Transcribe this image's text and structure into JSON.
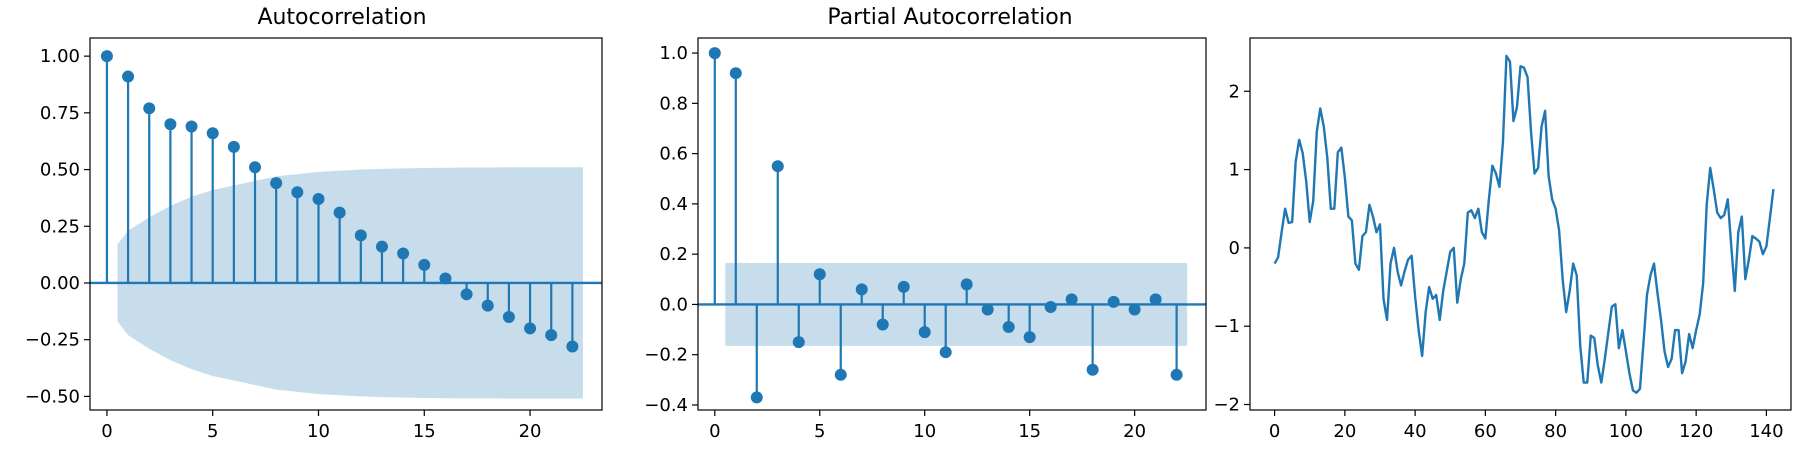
{
  "colors": {
    "accent": "#1f77b4",
    "band": "#1f77b4"
  },
  "chart_data": [
    {
      "type": "stem",
      "title": "Autocorrelation",
      "x": [
        0,
        1,
        2,
        3,
        4,
        5,
        6,
        7,
        8,
        9,
        10,
        11,
        12,
        13,
        14,
        15,
        16,
        17,
        18,
        19,
        20,
        21,
        22
      ],
      "values": [
        1.0,
        0.91,
        0.77,
        0.7,
        0.69,
        0.66,
        0.6,
        0.51,
        0.44,
        0.4,
        0.37,
        0.31,
        0.21,
        0.16,
        0.13,
        0.08,
        0.02,
        -0.05,
        -0.1,
        -0.15,
        -0.2,
        -0.23,
        -0.28
      ],
      "confidence_band": {
        "x": [
          0.5,
          1,
          2,
          3,
          4,
          5,
          6,
          7,
          8,
          9,
          10,
          11,
          12,
          13,
          14,
          15,
          16,
          17,
          18,
          19,
          20,
          21,
          22,
          22.5
        ],
        "upper": [
          0.17,
          0.23,
          0.29,
          0.34,
          0.38,
          0.41,
          0.43,
          0.45,
          0.47,
          0.48,
          0.49,
          0.495,
          0.5,
          0.503,
          0.505,
          0.507,
          0.508,
          0.509,
          0.509,
          0.51,
          0.51,
          0.51,
          0.51,
          0.51
        ]
      },
      "xlim": [
        -0.8,
        23.4
      ],
      "ylim": [
        -0.56,
        1.08
      ],
      "xticks": [
        0,
        5,
        10,
        15,
        20
      ],
      "yticks": [
        -0.5,
        -0.25,
        0.0,
        0.25,
        0.5,
        0.75,
        1.0
      ],
      "ytick_labels": [
        "−0.50",
        "−0.25",
        "0.00",
        "0.25",
        "0.50",
        "0.75",
        "1.00"
      ],
      "grid": false
    },
    {
      "type": "stem",
      "title": "Partial Autocorrelation",
      "x": [
        0,
        1,
        2,
        3,
        4,
        5,
        6,
        7,
        8,
        9,
        10,
        11,
        12,
        13,
        14,
        15,
        16,
        17,
        18,
        19,
        20,
        21,
        22
      ],
      "values": [
        1.0,
        0.92,
        -0.37,
        0.55,
        -0.15,
        0.12,
        -0.28,
        0.06,
        -0.08,
        0.07,
        -0.11,
        -0.19,
        0.08,
        -0.02,
        -0.09,
        -0.13,
        -0.01,
        0.02,
        -0.26,
        0.01,
        -0.02,
        0.02,
        -0.28
      ],
      "confidence_band": {
        "x": [
          0.5,
          22.5
        ],
        "upper": [
          0.165,
          0.165
        ]
      },
      "xlim": [
        -0.8,
        23.4
      ],
      "ylim": [
        -0.42,
        1.06
      ],
      "xticks": [
        0,
        5,
        10,
        15,
        20
      ],
      "yticks": [
        -0.4,
        -0.2,
        0.0,
        0.2,
        0.4,
        0.6,
        0.8,
        1.0
      ],
      "ytick_labels": [
        "−0.4",
        "−0.2",
        "0.0",
        "0.2",
        "0.4",
        "0.6",
        "0.8",
        "1.0"
      ],
      "grid": false
    },
    {
      "type": "line",
      "title": "",
      "x_start": 0,
      "values": [
        -0.2,
        -0.12,
        0.2,
        0.5,
        0.32,
        0.33,
        1.1,
        1.38,
        1.21,
        0.85,
        0.33,
        0.6,
        1.48,
        1.78,
        1.55,
        1.15,
        0.5,
        0.5,
        1.22,
        1.28,
        0.9,
        0.4,
        0.35,
        -0.2,
        -0.28,
        0.15,
        0.2,
        0.55,
        0.4,
        0.2,
        0.3,
        -0.65,
        -0.92,
        -0.2,
        0.0,
        -0.3,
        -0.48,
        -0.3,
        -0.15,
        -0.1,
        -0.62,
        -1.05,
        -1.38,
        -0.82,
        -0.5,
        -0.65,
        -0.6,
        -0.92,
        -0.55,
        -0.3,
        -0.05,
        0.0,
        -0.7,
        -0.4,
        -0.2,
        0.45,
        0.48,
        0.38,
        0.5,
        0.2,
        0.12,
        0.62,
        1.05,
        0.95,
        0.78,
        1.35,
        2.45,
        2.38,
        1.62,
        1.8,
        2.32,
        2.3,
        2.18,
        1.48,
        0.95,
        1.02,
        1.55,
        1.75,
        0.92,
        0.62,
        0.5,
        0.22,
        -0.4,
        -0.82,
        -0.55,
        -0.2,
        -0.35,
        -1.25,
        -1.72,
        -1.72,
        -1.12,
        -1.15,
        -1.5,
        -1.72,
        -1.42,
        -1.08,
        -0.75,
        -0.72,
        -1.28,
        -1.05,
        -1.32,
        -1.6,
        -1.82,
        -1.85,
        -1.8,
        -1.22,
        -0.6,
        -0.35,
        -0.2,
        -0.58,
        -0.92,
        -1.32,
        -1.52,
        -1.42,
        -1.05,
        -1.05,
        -1.6,
        -1.45,
        -1.1,
        -1.28,
        -1.05,
        -0.85,
        -0.45,
        0.55,
        1.02,
        0.75,
        0.45,
        0.38,
        0.42,
        0.62,
        0.02,
        -0.55,
        0.2,
        0.4,
        -0.4,
        -0.15,
        0.15,
        0.12,
        0.08,
        -0.08,
        0.02,
        0.38,
        0.75
      ],
      "xlim": [
        -7,
        147
      ],
      "ylim": [
        -2.07,
        2.68
      ],
      "xticks": [
        0,
        20,
        40,
        60,
        80,
        100,
        120,
        140
      ],
      "yticks": [
        -2,
        -1,
        0,
        1,
        2
      ],
      "ytick_labels": [
        "−2",
        "−1",
        "0",
        "1",
        "2"
      ],
      "grid": false
    }
  ]
}
